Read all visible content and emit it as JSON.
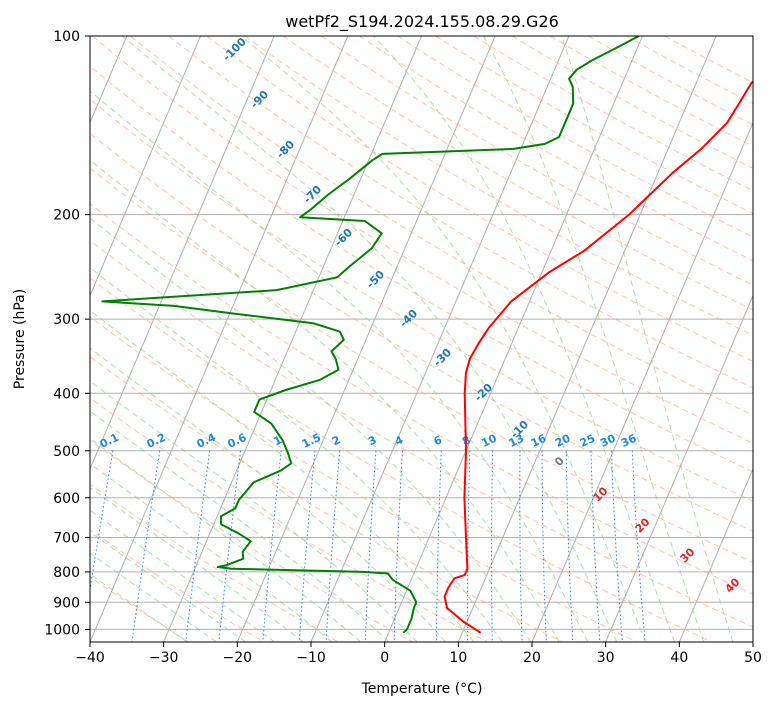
{
  "chart_data": {
    "type": "line",
    "title": "wetPf2_S194.2024.155.08.29.G26",
    "xlabel": "Temperature (°C)",
    "ylabel": "Pressure (hPa)",
    "xlim": [
      -40,
      50
    ],
    "ylim": [
      1050,
      100
    ],
    "y_scale": "log",
    "grid": true,
    "x_ticks": [
      -40,
      -30,
      -20,
      -10,
      0,
      10,
      20,
      30,
      40,
      50
    ],
    "y_ticks": [
      100,
      200,
      300,
      400,
      500,
      600,
      700,
      800,
      900,
      1000
    ],
    "x_tick_labels": [
      "−40",
      "−30",
      "−20",
      "−10",
      "0",
      "10",
      "20",
      "30",
      "40",
      "50"
    ],
    "y_tick_labels": [
      "100",
      "200",
      "300",
      "400",
      "500",
      "600",
      "700",
      "800",
      "900",
      "1000"
    ],
    "colors": {
      "temperature": "#ff0000",
      "dewpoint": "#008000",
      "dry_adiabat": "#1f77b4",
      "moist_adiabat": "#d62728",
      "mixing_ratio": "#1e88e5",
      "isotherm": "#9e9e9e"
    },
    "series": [
      {
        "key": "temperature",
        "points": [
          {
            "t": 12.5,
            "p": 1013
          },
          {
            "t": 9.5,
            "p": 970
          },
          {
            "t": 6.5,
            "p": 920
          },
          {
            "t": 5.5,
            "p": 880
          },
          {
            "t": 5.5,
            "p": 850
          },
          {
            "t": 5.8,
            "p": 820
          },
          {
            "t": 7.0,
            "p": 810
          },
          {
            "t": 7.0,
            "p": 790
          },
          {
            "t": 5.0,
            "p": 700
          },
          {
            "t": 2.5,
            "p": 600
          },
          {
            "t": 0.0,
            "p": 500
          },
          {
            "t": -3.5,
            "p": 400
          },
          {
            "t": -4.5,
            "p": 370
          },
          {
            "t": -4.8,
            "p": 350
          },
          {
            "t": -4.5,
            "p": 330
          },
          {
            "t": -4.0,
            "p": 310
          },
          {
            "t": -2.5,
            "p": 280
          },
          {
            "t": 1.0,
            "p": 250
          },
          {
            "t": 4.5,
            "p": 230
          },
          {
            "t": 8.5,
            "p": 200
          },
          {
            "t": 12.0,
            "p": 170
          },
          {
            "t": 14.5,
            "p": 155
          },
          {
            "t": 16.5,
            "p": 140
          },
          {
            "t": 17.0,
            "p": 130
          },
          {
            "t": 17.5,
            "p": 120
          },
          {
            "t": 18.5,
            "p": 115
          },
          {
            "t": 20.0,
            "p": 108
          },
          {
            "t": 21.0,
            "p": 103
          },
          {
            "t": 22.0,
            "p": 100
          }
        ]
      },
      {
        "key": "dewpoint",
        "points": [
          {
            "t": 2.0,
            "p": 1013
          },
          {
            "t": 2.3,
            "p": 1000
          },
          {
            "t": 2.3,
            "p": 960
          },
          {
            "t": 2.0,
            "p": 920
          },
          {
            "t": 2.0,
            "p": 900
          },
          {
            "t": 0.5,
            "p": 860
          },
          {
            "t": -2.5,
            "p": 825
          },
          {
            "t": -3.5,
            "p": 805
          },
          {
            "t": -7,
            "p": 800
          },
          {
            "t": -25,
            "p": 790
          },
          {
            "t": -27,
            "p": 785
          },
          {
            "t": -26,
            "p": 780
          },
          {
            "t": -24,
            "p": 760
          },
          {
            "t": -24.5,
            "p": 740
          },
          {
            "t": -24,
            "p": 710
          },
          {
            "t": -26,
            "p": 690
          },
          {
            "t": -29,
            "p": 665
          },
          {
            "t": -29.5,
            "p": 645
          },
          {
            "t": -28,
            "p": 625
          },
          {
            "t": -28,
            "p": 605
          },
          {
            "t": -27.5,
            "p": 585
          },
          {
            "t": -27,
            "p": 565
          },
          {
            "t": -24,
            "p": 540
          },
          {
            "t": -23,
            "p": 525
          },
          {
            "t": -24,
            "p": 505
          },
          {
            "t": -25.5,
            "p": 480
          },
          {
            "t": -28,
            "p": 450
          },
          {
            "t": -31,
            "p": 430
          },
          {
            "t": -31,
            "p": 410
          },
          {
            "t": -28,
            "p": 395
          },
          {
            "t": -24,
            "p": 380
          },
          {
            "t": -22,
            "p": 365
          },
          {
            "t": -23,
            "p": 350
          },
          {
            "t": -24,
            "p": 340
          },
          {
            "t": -23,
            "p": 325
          },
          {
            "t": -24,
            "p": 315
          },
          {
            "t": -28,
            "p": 305
          },
          {
            "t": -40,
            "p": 293
          },
          {
            "t": -48,
            "p": 285
          },
          {
            "t": -58,
            "p": 280
          },
          {
            "t": -35,
            "p": 268
          },
          {
            "t": -27.5,
            "p": 255
          },
          {
            "t": -26.5,
            "p": 245
          },
          {
            "t": -24.5,
            "p": 228
          },
          {
            "t": -24,
            "p": 215
          },
          {
            "t": -27,
            "p": 205
          },
          {
            "t": -36,
            "p": 202
          },
          {
            "t": -35,
            "p": 196
          },
          {
            "t": -33.5,
            "p": 185
          },
          {
            "t": -31.5,
            "p": 174
          },
          {
            "t": -29.5,
            "p": 162
          },
          {
            "t": -28.5,
            "p": 158
          },
          {
            "t": -11,
            "p": 155
          },
          {
            "t": -7,
            "p": 152
          },
          {
            "t": -5.5,
            "p": 148
          },
          {
            "t": -5.5,
            "p": 143
          },
          {
            "t": -5.5,
            "p": 135
          },
          {
            "t": -5.5,
            "p": 130
          },
          {
            "t": -6.5,
            "p": 122
          },
          {
            "t": -7.5,
            "p": 118
          },
          {
            "t": -7,
            "p": 114
          },
          {
            "t": -5.5,
            "p": 110
          },
          {
            "t": -3.5,
            "p": 106
          },
          {
            "t": -2.0,
            "p": 103
          },
          {
            "t": -0.5,
            "p": 100
          }
        ]
      }
    ],
    "dry_adiabat_labels": [
      "-100",
      "-90",
      "-80",
      "-70",
      "-60",
      "-50",
      "-40",
      "-30",
      "-20",
      "-10",
      "0"
    ],
    "moist_adiabat_labels": [
      "10",
      "20",
      "30",
      "40"
    ],
    "mixing_ratio_labels": [
      "0.1",
      "0.2",
      "0.4",
      "0.6",
      "1",
      "1.5",
      "2",
      "3",
      "4",
      "6",
      "8",
      "10",
      "13",
      "16",
      "20",
      "25",
      "30",
      "36"
    ],
    "mixing_ratio_values": [
      0.1,
      0.2,
      0.4,
      0.6,
      1,
      1.5,
      2,
      3,
      4,
      6,
      8,
      10,
      13,
      16,
      20,
      25,
      30,
      36
    ]
  }
}
